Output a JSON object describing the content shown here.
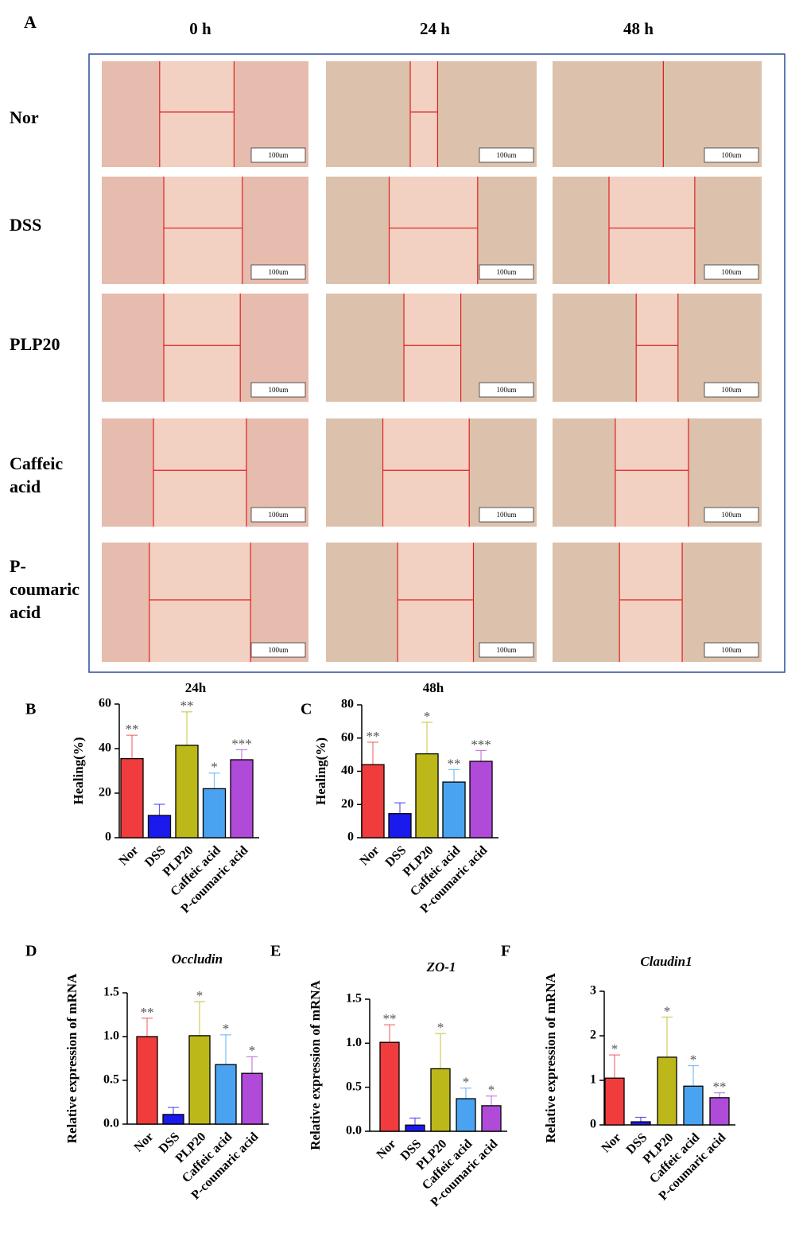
{
  "panel_a": {
    "label": "A",
    "columns": [
      "0 h",
      "24 h",
      "48 h"
    ],
    "rows": [
      "Nor",
      "DSS",
      "PLP20",
      "Caffeic acid",
      "P-coumaric acid"
    ],
    "scale_bar": "100um"
  },
  "chart_data": [
    {
      "type": "bar",
      "panel": "B",
      "title": "24h",
      "ylabel": "Healing(%)",
      "categories": [
        "Nor",
        "DSS",
        "PLP20",
        "Caffeic acid",
        "P-coumaric acid"
      ],
      "values": [
        35.5,
        10,
        41.5,
        22,
        35
      ],
      "errors": [
        10.5,
        5,
        15,
        7,
        4.5
      ],
      "annotations": [
        "**",
        null,
        "**",
        "*",
        "***"
      ],
      "colors": [
        "#f03c3c",
        "#1a1aee",
        "#bcb81a",
        "#4aa3f0",
        "#b04ad8"
      ],
      "ylim": [
        0,
        60
      ],
      "yticks": [
        0,
        20,
        40,
        60
      ]
    },
    {
      "type": "bar",
      "panel": "C",
      "title": "48h",
      "ylabel": "Healing(%)",
      "categories": [
        "Nor",
        "DSS",
        "PLP20",
        "Caffeic acid",
        "P-coumaric acid"
      ],
      "values": [
        44,
        14.5,
        50.5,
        33.5,
        46
      ],
      "errors": [
        13.5,
        6.5,
        19,
        7.5,
        6.5
      ],
      "annotations": [
        "**",
        null,
        "*",
        "**",
        "***"
      ],
      "colors": [
        "#f03c3c",
        "#1a1aee",
        "#bcb81a",
        "#4aa3f0",
        "#b04ad8"
      ],
      "ylim": [
        0,
        80
      ],
      "yticks": [
        0,
        20,
        40,
        60,
        80
      ]
    },
    {
      "type": "bar",
      "panel": "D",
      "title": "Occludin",
      "ylabel": "Relative expression of mRNA",
      "categories": [
        "Nor",
        "DSS",
        "PLP20",
        "Caffeic acid",
        "P-coumaric acid"
      ],
      "values": [
        1.0,
        0.11,
        1.01,
        0.68,
        0.58
      ],
      "errors": [
        0.21,
        0.08,
        0.39,
        0.34,
        0.19
      ],
      "annotations": [
        "**",
        null,
        "*",
        "*",
        "*"
      ],
      "colors": [
        "#f03c3c",
        "#1a1aee",
        "#bcb81a",
        "#4aa3f0",
        "#b04ad8"
      ],
      "ylim": [
        0,
        1.5
      ],
      "yticks": [
        {
          "value": 0,
          "label": "0.0"
        },
        0.5,
        {
          "value": 1,
          "label": "1.0"
        },
        1.5
      ]
    },
    {
      "type": "bar",
      "panel": "E",
      "title": "ZO-1",
      "ylabel": "Relative expression of mRNA",
      "categories": [
        "Nor",
        "DSS",
        "PLP20",
        "Caffeic acid",
        "P-coumaric acid"
      ],
      "values": [
        1.01,
        0.07,
        0.71,
        0.37,
        0.29
      ],
      "errors": [
        0.2,
        0.08,
        0.4,
        0.12,
        0.11
      ],
      "annotations": [
        "**",
        null,
        "*",
        "*",
        "*"
      ],
      "colors": [
        "#f03c3c",
        "#1a1aee",
        "#bcb81a",
        "#4aa3f0",
        "#b04ad8"
      ],
      "ylim": [
        0,
        1.5
      ],
      "yticks": [
        {
          "value": 0,
          "label": "0.0"
        },
        0.5,
        {
          "value": 1,
          "label": "1.0"
        },
        1.5
      ]
    },
    {
      "type": "bar",
      "panel": "F",
      "title": "Claudin1",
      "ylabel": "Relative expression of mRNA",
      "categories": [
        "Nor",
        "DSS",
        "PLP20",
        "Caffeic acid",
        "P-coumaric acid"
      ],
      "values": [
        1.05,
        0.07,
        1.52,
        0.87,
        0.61
      ],
      "errors": [
        0.52,
        0.1,
        0.9,
        0.46,
        0.11
      ],
      "annotations": [
        "*",
        null,
        "*",
        "*",
        "**"
      ],
      "colors": [
        "#f03c3c",
        "#1a1aee",
        "#bcb81a",
        "#4aa3f0",
        "#b04ad8"
      ],
      "ylim": [
        0,
        3
      ],
      "yticks": [
        0,
        1,
        2,
        3
      ]
    }
  ]
}
